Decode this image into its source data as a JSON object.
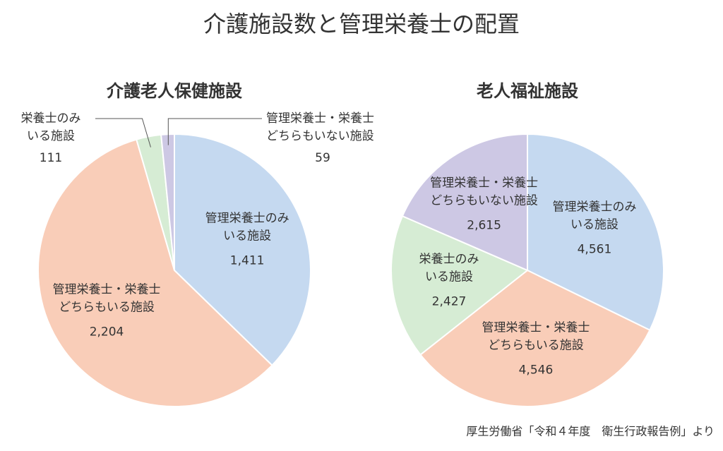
{
  "title": "介護施設数と管理栄養士の配置",
  "source": "厚生労働省「令和４年度　衛生行政報告例」より",
  "chart_data": [
    {
      "type": "pie",
      "title": "介護老人保健施設",
      "categories": [
        "管理栄養士のみ\nいる施設",
        "管理栄養士・栄養士\nどちらもいる施設",
        "栄養士のみ\nいる施設",
        "管理栄養士・栄養士\nどちらもいない施設"
      ],
      "values": [
        1411,
        2204,
        111,
        59
      ],
      "value_labels": [
        "1,411",
        "2,204",
        "111",
        "59"
      ],
      "colors": [
        "#c5d9f0",
        "#f9cdb8",
        "#d6ecd4",
        "#cdc8e4"
      ]
    },
    {
      "type": "pie",
      "title": "老人福祉施設",
      "categories": [
        "管理栄養士のみ\nいる施設",
        "管理栄養士・栄養士\nどちらもいる施設",
        "栄養士のみ\nいる施設",
        "管理栄養士・栄養士\nどちらもいない施設"
      ],
      "values": [
        4561,
        4546,
        2427,
        2615
      ],
      "value_labels": [
        "4,561",
        "4,546",
        "2,427",
        "2,615"
      ],
      "colors": [
        "#c5d9f0",
        "#f9cdb8",
        "#d6ecd4",
        "#cdc8e4"
      ]
    }
  ]
}
